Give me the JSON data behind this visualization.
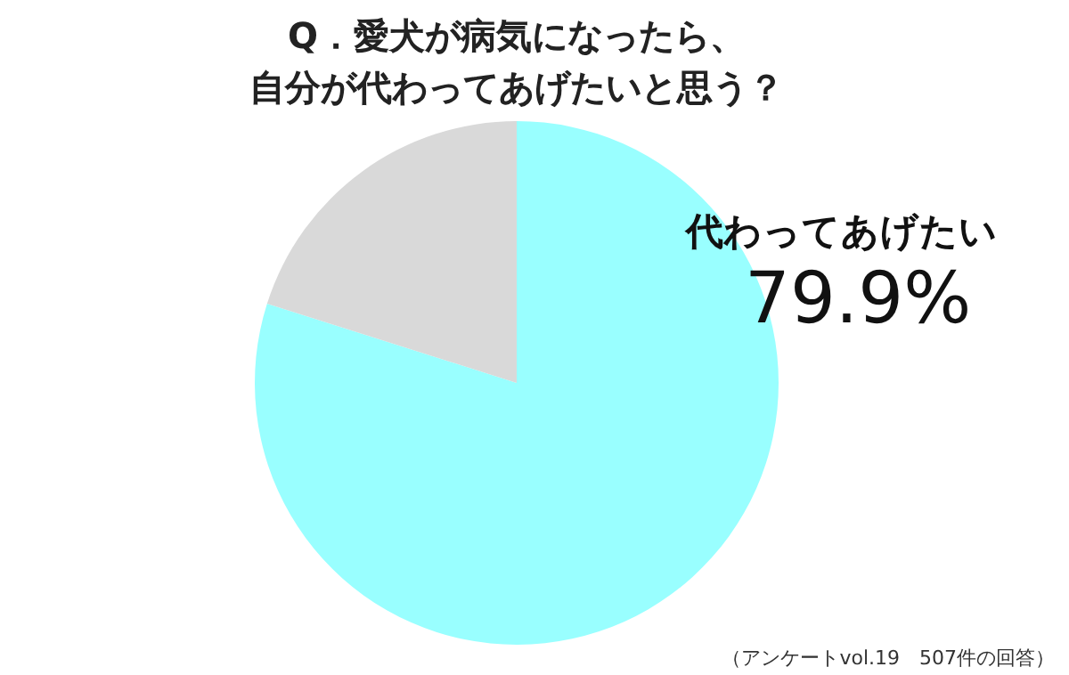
{
  "chart_data": {
    "type": "pie",
    "title": "Q．愛犬が病気になったら、",
    "subtitle": "自分が代わってあげたいと思う？",
    "categories": [
      "代わってあげたい",
      null
    ],
    "values": [
      79.9,
      20.1
    ],
    "colors": [
      "#99ffff",
      "#d9d9d9"
    ],
    "value_labels": [
      "79.9%",
      null
    ],
    "annotations": [
      "（アンケートvol.19　507件の回答）"
    ]
  }
}
